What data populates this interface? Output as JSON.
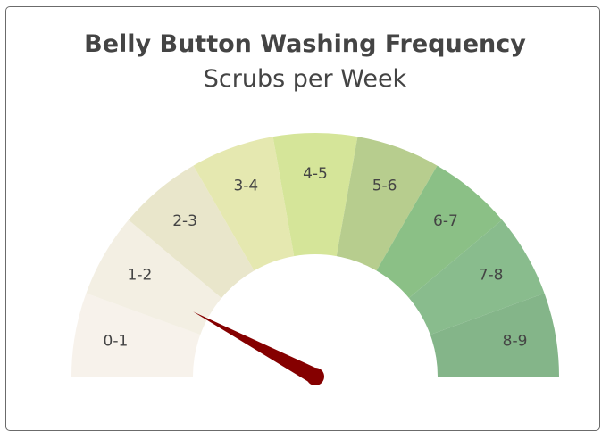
{
  "chart_data": {
    "type": "gauge",
    "title": "Belly Button Washing Frequency",
    "subtitle": "Scrubs per Week",
    "range": [
      0,
      9
    ],
    "value": 1.4,
    "segments": [
      {
        "label": "0-1",
        "color": "#f7f2eb"
      },
      {
        "label": "1-2",
        "color": "#f3efe3"
      },
      {
        "label": "2-3",
        "color": "#e9e6cb"
      },
      {
        "label": "3-4",
        "color": "#e5e8b0"
      },
      {
        "label": "4-5",
        "color": "#d5e599"
      },
      {
        "label": "5-6",
        "color": "#b7cd8e"
      },
      {
        "label": "6-7",
        "color": "#8bc086"
      },
      {
        "label": "7-8",
        "color": "#89bc8d"
      },
      {
        "label": "8-9",
        "color": "#84b589"
      }
    ],
    "needle_color": "#850000"
  }
}
